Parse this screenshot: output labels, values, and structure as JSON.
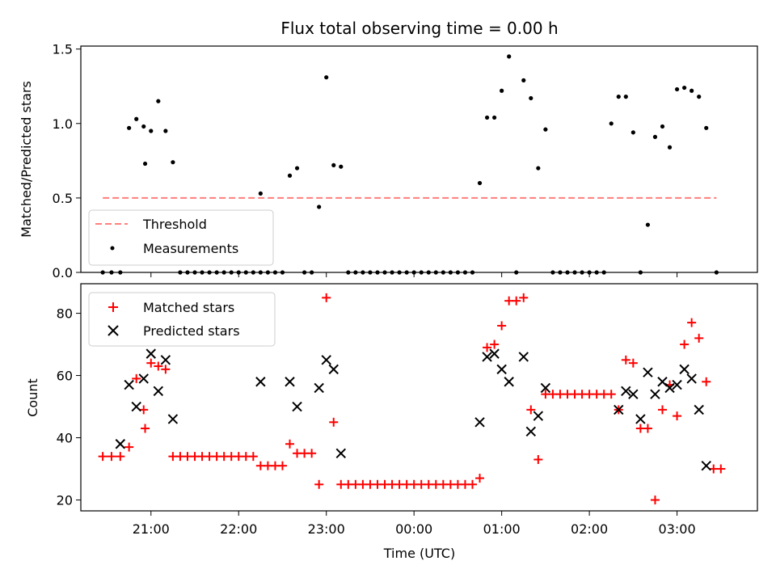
{
  "chart_data": [
    {
      "type": "scatter",
      "title": "Flux total observing time = 0.00 h",
      "ylabel": "Matched/Predicted stars",
      "ylim": [
        0,
        1.52
      ],
      "yticks": [
        0.0,
        0.5,
        1.0,
        1.5
      ],
      "ytick_labels": [
        "0.0",
        "0.5",
        "1.0",
        "1.5"
      ],
      "legend_position": "lower-left",
      "threshold": {
        "name": "Threshold",
        "color": "#ff7f7f",
        "value": 0.5,
        "x_range": [
          "20:27",
          "03:27"
        ]
      },
      "series": [
        {
          "name": "Measurements",
          "color": "#000000",
          "points": [
            [
              "20:27",
              0.0
            ],
            [
              "20:33",
              0.0
            ],
            [
              "20:39",
              0.0
            ],
            [
              "20:45",
              0.97
            ],
            [
              "20:50",
              1.03
            ],
            [
              "20:55",
              0.98
            ],
            [
              "21:00",
              0.95
            ],
            [
              "21:05",
              1.15
            ],
            [
              "20:56",
              0.73
            ],
            [
              "21:10",
              0.95
            ],
            [
              "21:15",
              0.74
            ],
            [
              "21:20",
              0.0
            ],
            [
              "21:25",
              0.0
            ],
            [
              "21:30",
              0.0
            ],
            [
              "21:35",
              0.0
            ],
            [
              "21:40",
              0.0
            ],
            [
              "21:45",
              0.0
            ],
            [
              "21:50",
              0.0
            ],
            [
              "21:55",
              0.0
            ],
            [
              "22:00",
              0.0
            ],
            [
              "22:05",
              0.0
            ],
            [
              "22:10",
              0.0
            ],
            [
              "22:15",
              0.0
            ],
            [
              "22:20",
              0.0
            ],
            [
              "22:25",
              0.0
            ],
            [
              "22:30",
              0.0
            ],
            [
              "22:15",
              0.53
            ],
            [
              "22:35",
              0.65
            ],
            [
              "22:40",
              0.7
            ],
            [
              "22:45",
              0.0
            ],
            [
              "22:50",
              0.0
            ],
            [
              "22:55",
              0.44
            ],
            [
              "23:00",
              1.31
            ],
            [
              "23:05",
              0.72
            ],
            [
              "23:10",
              0.71
            ],
            [
              "23:15",
              0.0
            ],
            [
              "23:20",
              0.0
            ],
            [
              "23:25",
              0.0
            ],
            [
              "23:30",
              0.0
            ],
            [
              "23:35",
              0.0
            ],
            [
              "23:40",
              0.0
            ],
            [
              "23:45",
              0.0
            ],
            [
              "23:50",
              0.0
            ],
            [
              "23:55",
              0.0
            ],
            [
              "00:00",
              0.0
            ],
            [
              "00:05",
              0.0
            ],
            [
              "00:10",
              0.0
            ],
            [
              "00:15",
              0.0
            ],
            [
              "00:20",
              0.0
            ],
            [
              "00:25",
              0.0
            ],
            [
              "00:30",
              0.0
            ],
            [
              "00:35",
              0.0
            ],
            [
              "00:40",
              0.0
            ],
            [
              "00:45",
              0.6
            ],
            [
              "00:50",
              1.04
            ],
            [
              "00:55",
              1.04
            ],
            [
              "01:00",
              1.22
            ],
            [
              "01:05",
              1.45
            ],
            [
              "01:10",
              0.0
            ],
            [
              "01:15",
              1.29
            ],
            [
              "01:20",
              1.17
            ],
            [
              "01:25",
              0.7
            ],
            [
              "01:30",
              0.96
            ],
            [
              "01:35",
              0.0
            ],
            [
              "01:40",
              0.0
            ],
            [
              "01:45",
              0.0
            ],
            [
              "01:50",
              0.0
            ],
            [
              "01:55",
              0.0
            ],
            [
              "02:00",
              0.0
            ],
            [
              "02:05",
              0.0
            ],
            [
              "02:10",
              0.0
            ],
            [
              "02:15",
              1.0
            ],
            [
              "02:20",
              1.18
            ],
            [
              "02:25",
              1.18
            ],
            [
              "02:30",
              0.94
            ],
            [
              "02:35",
              0.0
            ],
            [
              "02:40",
              0.32
            ],
            [
              "02:45",
              0.91
            ],
            [
              "02:50",
              0.98
            ],
            [
              "02:55",
              0.84
            ],
            [
              "03:00",
              1.23
            ],
            [
              "03:05",
              1.24
            ],
            [
              "03:10",
              1.22
            ],
            [
              "03:15",
              1.18
            ],
            [
              "03:20",
              0.97
            ],
            [
              "03:27",
              0.0
            ]
          ]
        }
      ]
    },
    {
      "type": "scatter",
      "xlabel": "Time (UTC)",
      "ylabel": "Count",
      "ylim": [
        16.5,
        89.5
      ],
      "yticks": [
        20,
        40,
        60,
        80
      ],
      "ytick_labels": [
        "20",
        "40",
        "60",
        "80"
      ],
      "xticks": [
        "21:00",
        "22:00",
        "23:00",
        "00:00",
        "01:00",
        "02:00",
        "03:00"
      ],
      "legend_position": "top-left",
      "series": [
        {
          "name": "Matched stars",
          "color": "#ff0000",
          "marker": "plus",
          "points": [
            [
              "20:27",
              34
            ],
            [
              "20:33",
              34
            ],
            [
              "20:39",
              34
            ],
            [
              "20:45",
              37
            ],
            [
              "20:50",
              59
            ],
            [
              "20:55",
              49
            ],
            [
              "20:56",
              43
            ],
            [
              "21:00",
              64
            ],
            [
              "21:05",
              63
            ],
            [
              "21:10",
              62
            ],
            [
              "21:15",
              34
            ],
            [
              "21:20",
              34
            ],
            [
              "21:25",
              34
            ],
            [
              "21:30",
              34
            ],
            [
              "21:35",
              34
            ],
            [
              "21:40",
              34
            ],
            [
              "21:45",
              34
            ],
            [
              "21:50",
              34
            ],
            [
              "21:55",
              34
            ],
            [
              "22:00",
              34
            ],
            [
              "22:05",
              34
            ],
            [
              "22:10",
              34
            ],
            [
              "22:15",
              31
            ],
            [
              "22:20",
              31
            ],
            [
              "22:25",
              31
            ],
            [
              "22:30",
              31
            ],
            [
              "22:35",
              38
            ],
            [
              "22:40",
              35
            ],
            [
              "22:45",
              35
            ],
            [
              "22:50",
              35
            ],
            [
              "22:55",
              25
            ],
            [
              "23:00",
              85
            ],
            [
              "23:05",
              45
            ],
            [
              "23:10",
              25
            ],
            [
              "23:15",
              25
            ],
            [
              "23:20",
              25
            ],
            [
              "23:25",
              25
            ],
            [
              "23:30",
              25
            ],
            [
              "23:35",
              25
            ],
            [
              "23:40",
              25
            ],
            [
              "23:45",
              25
            ],
            [
              "23:50",
              25
            ],
            [
              "23:55",
              25
            ],
            [
              "00:00",
              25
            ],
            [
              "00:05",
              25
            ],
            [
              "00:10",
              25
            ],
            [
              "00:15",
              25
            ],
            [
              "00:20",
              25
            ],
            [
              "00:25",
              25
            ],
            [
              "00:30",
              25
            ],
            [
              "00:35",
              25
            ],
            [
              "00:40",
              25
            ],
            [
              "00:45",
              27
            ],
            [
              "00:50",
              69
            ],
            [
              "00:55",
              70
            ],
            [
              "01:00",
              76
            ],
            [
              "01:05",
              84
            ],
            [
              "01:10",
              84
            ],
            [
              "01:15",
              85
            ],
            [
              "01:20",
              49
            ],
            [
              "01:25",
              33
            ],
            [
              "01:30",
              54
            ],
            [
              "01:35",
              54
            ],
            [
              "01:40",
              54
            ],
            [
              "01:45",
              54
            ],
            [
              "01:50",
              54
            ],
            [
              "01:55",
              54
            ],
            [
              "02:00",
              54
            ],
            [
              "02:05",
              54
            ],
            [
              "02:10",
              54
            ],
            [
              "02:15",
              54
            ],
            [
              "02:20",
              49
            ],
            [
              "02:25",
              65
            ],
            [
              "02:30",
              64
            ],
            [
              "02:35",
              43
            ],
            [
              "02:40",
              43
            ],
            [
              "02:45",
              20
            ],
            [
              "02:50",
              49
            ],
            [
              "02:55",
              57
            ],
            [
              "03:00",
              47
            ],
            [
              "03:05",
              70
            ],
            [
              "03:10",
              77
            ],
            [
              "03:15",
              72
            ],
            [
              "03:20",
              58
            ],
            [
              "03:25",
              30
            ],
            [
              "03:30",
              30
            ]
          ]
        },
        {
          "name": "Predicted stars",
          "color": "#000000",
          "marker": "x",
          "points": [
            [
              "20:39",
              38
            ],
            [
              "20:45",
              57
            ],
            [
              "20:50",
              50
            ],
            [
              "20:55",
              59
            ],
            [
              "21:00",
              67
            ],
            [
              "21:05",
              55
            ],
            [
              "21:10",
              65
            ],
            [
              "21:15",
              46
            ],
            [
              "22:15",
              58
            ],
            [
              "22:35",
              58
            ],
            [
              "22:40",
              50
            ],
            [
              "22:55",
              56
            ],
            [
              "23:00",
              65
            ],
            [
              "23:05",
              62
            ],
            [
              "23:10",
              35
            ],
            [
              "00:45",
              45
            ],
            [
              "00:50",
              66
            ],
            [
              "00:55",
              67
            ],
            [
              "01:00",
              62
            ],
            [
              "01:05",
              58
            ],
            [
              "01:15",
              66
            ],
            [
              "01:20",
              42
            ],
            [
              "01:25",
              47
            ],
            [
              "01:30",
              56
            ],
            [
              "02:20",
              49
            ],
            [
              "02:25",
              55
            ],
            [
              "02:30",
              54
            ],
            [
              "02:35",
              46
            ],
            [
              "02:40",
              61
            ],
            [
              "02:45",
              54
            ],
            [
              "02:50",
              58
            ],
            [
              "02:55",
              56
            ],
            [
              "03:00",
              57
            ],
            [
              "03:05",
              62
            ],
            [
              "03:10",
              59
            ],
            [
              "03:15",
              49
            ],
            [
              "03:20",
              31
            ]
          ]
        }
      ]
    }
  ]
}
